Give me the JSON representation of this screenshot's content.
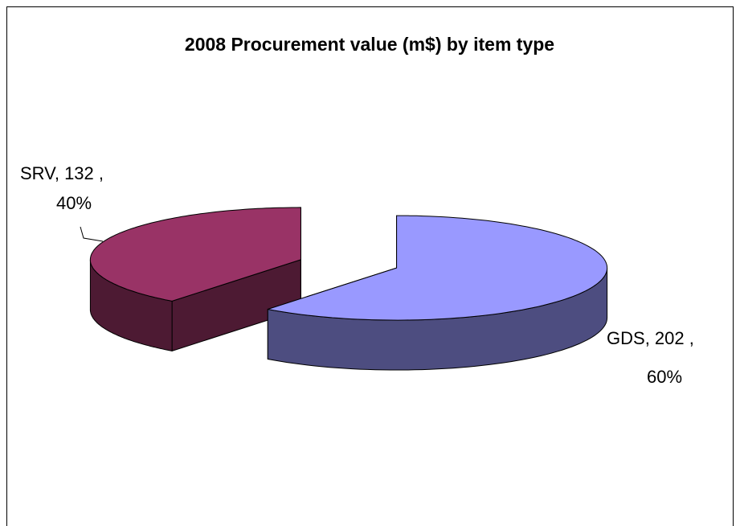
{
  "chart_data": {
    "type": "pie",
    "title": "2008 Procurement value (m$) by item type",
    "categories": [
      "GDS",
      "SRV"
    ],
    "values": [
      202,
      132
    ],
    "percent_labels": [
      "60%",
      "40%"
    ],
    "colors": [
      "#9999ff",
      "#993366"
    ],
    "three_d": true
  }
}
